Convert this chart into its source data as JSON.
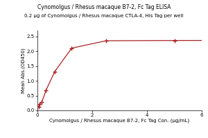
{
  "title_line1": "Cynomolgus / Rhesus macaque B7-2, Fc Tag ELISA",
  "title_line2": "0.2 μg of Cynomolgus / Rhesus macaque CTLA-4, His Tag per well",
  "xlabel": "Cynomolgus / Rhesus macaque B7-2, Fc Tag Con. (μg/mL)",
  "ylabel": "Mean Abs.(OD450)",
  "x_data": [
    0.039,
    0.078,
    0.156,
    0.313,
    0.625,
    1.25,
    2.5,
    5.0
  ],
  "y_data": [
    0.11,
    0.22,
    0.28,
    0.68,
    1.3,
    2.1,
    2.35,
    2.36
  ],
  "xlim": [
    0,
    6
  ],
  "ylim": [
    0.0,
    2.7
  ],
  "yticks": [
    0.0,
    0.5,
    1.0,
    1.5,
    2.0,
    2.5
  ],
  "xticks": [
    0,
    2,
    4,
    6
  ],
  "curve_color": "#aa2222",
  "marker_color": "#aa2222",
  "bg_color": "#ffffff",
  "title_fontsize": 5.5,
  "subtitle_fontsize": 5.0,
  "axis_label_fontsize": 5.0,
  "tick_fontsize": 5.0
}
